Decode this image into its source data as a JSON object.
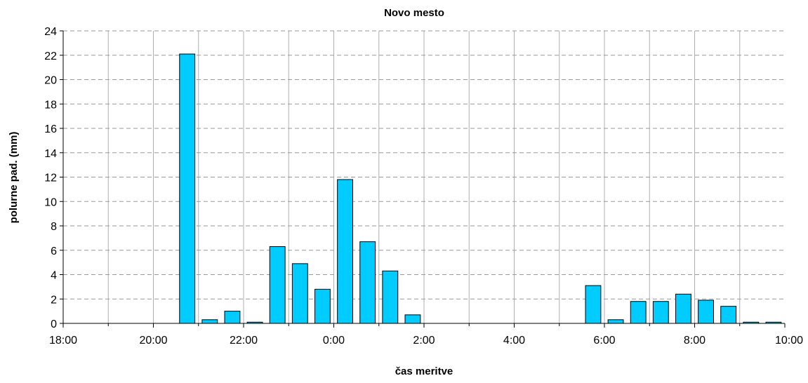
{
  "chart_data": {
    "type": "bar",
    "title": "Novo mesto",
    "xlabel": "čas meritve",
    "ylabel": "polurne pad. (mm)",
    "ylim": [
      0,
      24
    ],
    "yticks": [
      0,
      2,
      4,
      6,
      8,
      10,
      12,
      14,
      16,
      18,
      20,
      22,
      24
    ],
    "xlim_hours": [
      18,
      34
    ],
    "xtick_labels": [
      "18:00",
      "20:00",
      "22:00",
      "0:00",
      "2:00",
      "4:00",
      "6:00",
      "8:00",
      "10:00"
    ],
    "grid": "horizontal dashed",
    "bar_color": "#00ccff",
    "series": [
      {
        "x": [
          "21:00",
          "21:30",
          "22:00",
          "22:30",
          "23:00",
          "23:30",
          "0:00",
          "0:30",
          "1:00",
          "1:30",
          "2:00",
          "2:30",
          "3:00",
          "3:30",
          "4:00",
          "4:30",
          "5:00",
          "5:30",
          "6:00",
          "6:30",
          "7:00",
          "7:30",
          "8:00",
          "8:30",
          "9:00",
          "9:30",
          "10:00"
        ],
        "values": [
          22.1,
          0.3,
          1.0,
          0.1,
          6.3,
          4.9,
          2.8,
          11.8,
          6.7,
          4.3,
          0.7,
          0,
          0,
          0,
          0,
          0,
          0,
          0,
          3.1,
          0.3,
          1.8,
          1.8,
          2.4,
          1.9,
          1.4,
          0.1,
          0.1
        ]
      }
    ]
  }
}
